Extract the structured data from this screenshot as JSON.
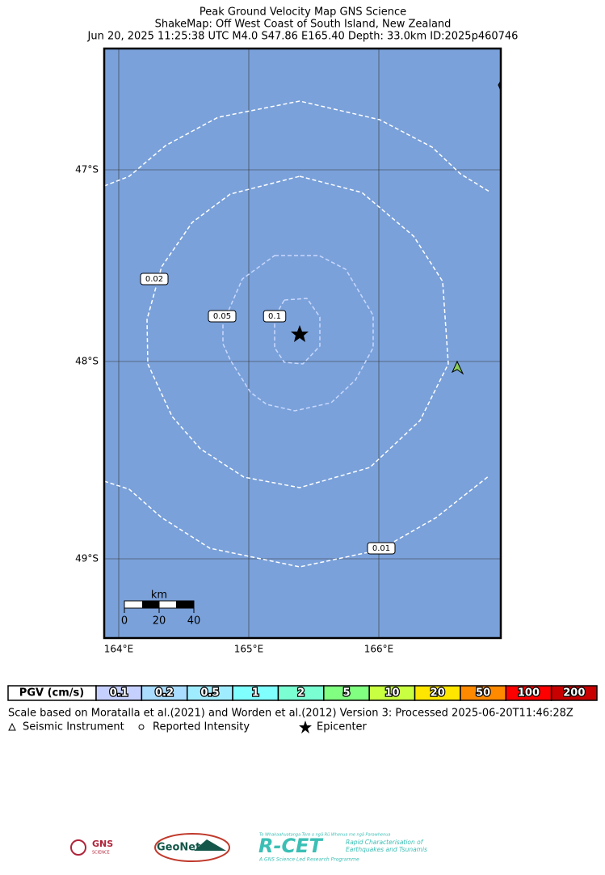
{
  "header": {
    "title_lines": [
      "Peak Ground Velocity Map GNS Science",
      "ShakeMap: Off West Coast of South Island, New Zealand",
      "Jun 20, 2025 11:25:38 UTC M4.0 S47.86 E165.40 Depth: 33.0km ID:2025p460746"
    ]
  },
  "map": {
    "lat_labels": [
      "47°S",
      "48°S",
      "49°S"
    ],
    "lon_labels": [
      "164°E",
      "165°E",
      "166°E"
    ],
    "contour_labels": [
      "0.02",
      "0.05",
      "0.1",
      "0.01"
    ],
    "scale_bar": {
      "unit": "km",
      "labels": [
        "0",
        "20",
        "40"
      ]
    }
  },
  "legend": {
    "title": "PGV (cm/s)",
    "items": [
      {
        "label": "0.1",
        "color": "#c6d0ff"
      },
      {
        "label": "0.2",
        "color": "#a9dcff"
      },
      {
        "label": "0.5",
        "color": "#a0ecff"
      },
      {
        "label": "1",
        "color": "#80ffff"
      },
      {
        "label": "2",
        "color": "#7affd2"
      },
      {
        "label": "5",
        "color": "#80ff80"
      },
      {
        "label": "10",
        "color": "#c8ff40"
      },
      {
        "label": "20",
        "color": "#ffe600"
      },
      {
        "label": "50",
        "color": "#ff8a00"
      },
      {
        "label": "100",
        "color": "#ff0000"
      },
      {
        "label": "200",
        "color": "#c80000"
      }
    ]
  },
  "footer": {
    "note": "Scale based on Moratalla et al.(2021) and Worden et al.(2012)   Version 3: Processed 2025-06-20T11:46:28Z",
    "symbols": [
      "Seismic Instrument",
      "Reported Intensity",
      "Epicenter"
    ]
  },
  "logos": {
    "gns": "GNS",
    "gns_sub": "SCIENCE",
    "geonet": "GeoNet",
    "rcet": "R-CET",
    "rcet_tag": "Te Whakaahuatanga Tere o ngā Rū Whenua me ngā Parawhenua",
    "rcet_desc1": "Rapid Characterisation of",
    "rcet_desc2": "Earthquakes and Tsunamis",
    "rcet_foot": "A GNS Science Led Research Programme"
  }
}
